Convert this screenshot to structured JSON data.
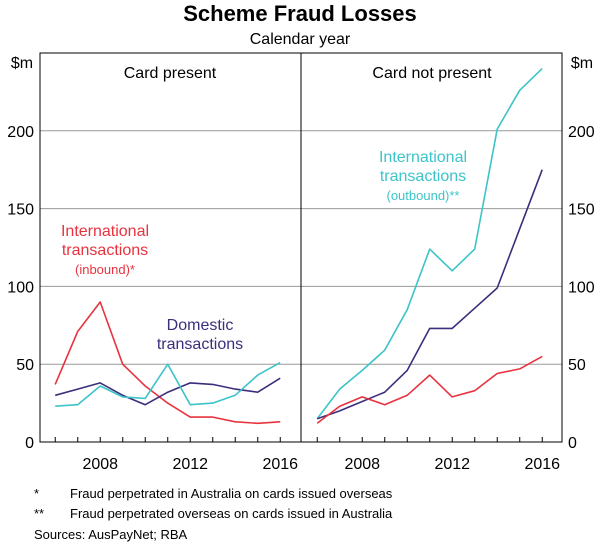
{
  "chart_data": {
    "type": "line",
    "title": "Scheme Fraud Losses",
    "subtitle": "Calendar year",
    "unit": "$m",
    "ylim": [
      0,
      250
    ],
    "yticks": [
      0,
      50,
      100,
      150,
      200
    ],
    "xlim": [
      2005.5,
      2016.7
    ],
    "xticks": [
      2008,
      2012,
      2016
    ],
    "grid": true,
    "panels": [
      {
        "title": "Card present",
        "series": [
          {
            "label_lines": [
              "International",
              "transactions",
              "(inbound)*"
            ],
            "color": "#e8333f",
            "x": [
              2006,
              2007,
              2008,
              2009,
              2010,
              2011,
              2012,
              2013,
              2014,
              2015,
              2016
            ],
            "values": [
              37,
              71,
              90,
              50,
              36,
              25,
              16,
              16,
              13,
              12,
              13
            ]
          },
          {
            "label_lines": [
              "Domestic",
              "transactions"
            ],
            "color": "#3d2e7c",
            "x": [
              2006,
              2007,
              2008,
              2009,
              2010,
              2011,
              2012,
              2013,
              2014,
              2015,
              2016
            ],
            "values": [
              30,
              34,
              38,
              30,
              24,
              32,
              38,
              37,
              34,
              32,
              41
            ]
          },
          {
            "color": "#3cc4c9",
            "x": [
              2006,
              2007,
              2008,
              2009,
              2010,
              2011,
              2012,
              2013,
              2014,
              2015,
              2016
            ],
            "values": [
              23,
              24,
              36,
              29,
              28,
              50,
              24,
              25,
              30,
              43,
              51
            ]
          }
        ]
      },
      {
        "title": "Card not present",
        "series": [
          {
            "label_lines": [
              "International",
              "transactions",
              "(outbound)**"
            ],
            "color": "#3cc4c9",
            "x": [
              2006,
              2007,
              2008,
              2009,
              2010,
              2011,
              2012,
              2013,
              2014,
              2015,
              2016
            ],
            "values": [
              15,
              34,
              46,
              59,
              85,
              124,
              110,
              124,
              201,
              226,
              240
            ]
          },
          {
            "color": "#3d2e7c",
            "x": [
              2006,
              2007,
              2008,
              2009,
              2010,
              2011,
              2012,
              2013,
              2014,
              2015,
              2016
            ],
            "values": [
              15,
              20,
              26,
              32,
              46,
              73,
              73,
              86,
              99,
              137,
              175
            ]
          },
          {
            "color": "#e8333f",
            "x": [
              2006,
              2007,
              2008,
              2009,
              2010,
              2011,
              2012,
              2013,
              2014,
              2015,
              2016
            ],
            "values": [
              12,
              23,
              29,
              24,
              30,
              43,
              29,
              33,
              44,
              47,
              55
            ]
          }
        ]
      }
    ]
  },
  "notes": [
    {
      "mark": "*",
      "text": "Fraud perpetrated in Australia on cards issued overseas"
    },
    {
      "mark": "**",
      "text": "Fraud perpetrated overseas on cards issued in Australia"
    }
  ],
  "source": "Sources: AusPayNet; RBA"
}
